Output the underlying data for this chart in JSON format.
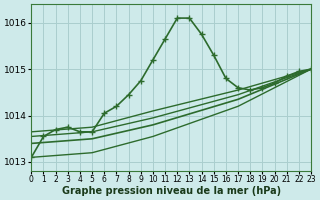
{
  "xlabel": "Graphe pression niveau de la mer (hPa)",
  "xlabel_fontsize": 7,
  "background_color": "#ceeaea",
  "grid_color": "#aacece",
  "line_color": "#2d6b2d",
  "xlim": [
    0,
    23
  ],
  "ylim": [
    1012.8,
    1016.4
  ],
  "yticks": [
    1013,
    1014,
    1015,
    1016
  ],
  "xticks": [
    0,
    1,
    2,
    3,
    4,
    5,
    6,
    7,
    8,
    9,
    10,
    11,
    12,
    13,
    14,
    15,
    16,
    17,
    18,
    19,
    20,
    21,
    22,
    23
  ],
  "xtick_fontsize": 5.5,
  "ytick_fontsize": 6.5,
  "series": [
    {
      "x": [
        0,
        1,
        2,
        3,
        4,
        5,
        6,
        7,
        8,
        9,
        10,
        11,
        12,
        13,
        14,
        15,
        16,
        17,
        18,
        19,
        20,
        21,
        22,
        23
      ],
      "y": [
        1013.1,
        1013.55,
        1013.7,
        1013.75,
        1013.65,
        1013.65,
        1014.05,
        1014.2,
        1014.45,
        1014.75,
        1015.2,
        1015.65,
        1016.1,
        1016.1,
        1015.75,
        1015.3,
        1014.8,
        1014.6,
        1014.55,
        1014.6,
        1014.7,
        1014.85,
        1014.95,
        1015.0
      ],
      "marker": "+",
      "linewidth": 1.2,
      "markersize": 5,
      "alpha": 1.0
    },
    {
      "x": [
        0,
        5,
        10,
        17,
        23
      ],
      "y": [
        1013.65,
        1013.75,
        1014.1,
        1014.55,
        1015.0
      ],
      "marker": null,
      "linewidth": 1.0,
      "markersize": 0,
      "alpha": 1.0
    },
    {
      "x": [
        0,
        5,
        10,
        17,
        23
      ],
      "y": [
        1013.55,
        1013.65,
        1013.95,
        1014.45,
        1015.0
      ],
      "marker": null,
      "linewidth": 1.0,
      "markersize": 0,
      "alpha": 1.0
    },
    {
      "x": [
        0,
        5,
        10,
        17,
        23
      ],
      "y": [
        1013.4,
        1013.5,
        1013.8,
        1014.35,
        1015.0
      ],
      "marker": null,
      "linewidth": 1.2,
      "markersize": 0,
      "alpha": 1.0
    },
    {
      "x": [
        0,
        5,
        10,
        17,
        23
      ],
      "y": [
        1013.1,
        1013.2,
        1013.55,
        1014.2,
        1015.0
      ],
      "marker": null,
      "linewidth": 1.0,
      "markersize": 0,
      "alpha": 1.0
    }
  ]
}
